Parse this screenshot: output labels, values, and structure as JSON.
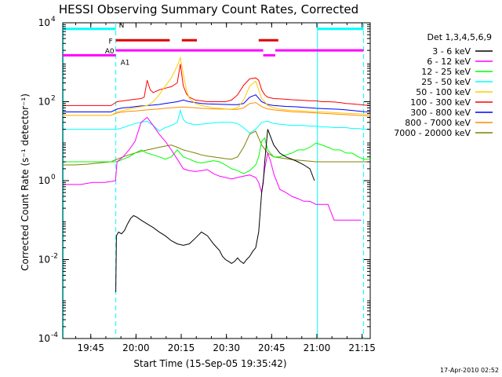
{
  "chart_data": {
    "type": "line",
    "title": "HESSI Observing Summary Count Rates, Corrected",
    "xlabel": "Start Time (15-Sep-05 19:35:42)",
    "ylabel": "Corrected Count Rate (s⁻¹ detector⁻¹)",
    "x_unit": "minutes after 19:35:42",
    "xlim": [
      0,
      102
    ],
    "ylim": [
      0.0001,
      10000
    ],
    "y_scale": "log",
    "x_ticks": [
      {
        "x": 9.3,
        "label": "19:45"
      },
      {
        "x": 24.3,
        "label": "20:00"
      },
      {
        "x": 39.3,
        "label": "20:15"
      },
      {
        "x": 54.3,
        "label": "20:30"
      },
      {
        "x": 69.3,
        "label": "20:45"
      },
      {
        "x": 84.3,
        "label": "21:00"
      },
      {
        "x": 99.3,
        "label": "21:15"
      }
    ],
    "y_ticks": [
      {
        "y": 0.0001,
        "base": "10",
        "exp": "-4"
      },
      {
        "y": 0.01,
        "base": "10",
        "exp": "-2"
      },
      {
        "y": 1,
        "base": "10",
        "exp": "0"
      },
      {
        "y": 100,
        "base": "10",
        "exp": "2"
      },
      {
        "y": 10000,
        "base": "10",
        "exp": "4"
      }
    ],
    "legend_title": "Det 1,3,4,5,6,9",
    "legend_position": "right",
    "series": [
      {
        "name": "3 - 6 keV",
        "color": "#000000",
        "x": [
          17.6,
          17.8,
          18.5,
          19.5,
          20.5,
          21.5,
          22.5,
          23.5,
          24.5,
          26,
          28,
          30,
          32,
          34,
          36,
          38,
          40,
          42,
          44,
          46,
          48,
          50,
          52,
          53,
          54,
          55,
          56,
          57,
          58,
          59,
          60,
          61,
          62,
          63,
          64,
          65,
          66,
          66.5,
          67,
          68,
          70,
          72,
          74,
          76,
          78,
          80,
          82,
          83.5
        ],
        "y": [
          0.0015,
          0.04,
          0.05,
          0.045,
          0.055,
          0.08,
          0.11,
          0.13,
          0.12,
          0.1,
          0.08,
          0.065,
          0.05,
          0.04,
          0.03,
          0.025,
          0.023,
          0.025,
          0.035,
          0.05,
          0.04,
          0.025,
          0.017,
          0.012,
          0.01,
          0.009,
          0.008,
          0.009,
          0.011,
          0.009,
          0.008,
          0.01,
          0.012,
          0.016,
          0.02,
          0.05,
          0.5,
          0.9,
          3,
          20,
          8,
          5,
          4,
          3.5,
          3,
          2.5,
          2,
          1
        ]
      },
      {
        "name": "6 - 12 keV",
        "color": "#ff00ff",
        "x": [
          0,
          6,
          8,
          10,
          12,
          14,
          16,
          17.5,
          18,
          20,
          22,
          24,
          26,
          28,
          30,
          32,
          34,
          36,
          38,
          40,
          42,
          44,
          46,
          48,
          50,
          52,
          54,
          56,
          58,
          60,
          62,
          64,
          65,
          66,
          67,
          68,
          69,
          70,
          72,
          74,
          76,
          78,
          80,
          82,
          84,
          86,
          88,
          90,
          92,
          94,
          96,
          99
        ],
        "y": [
          0.8,
          0.8,
          0.85,
          0.9,
          0.9,
          0.9,
          0.95,
          1.0,
          3,
          4,
          6,
          10,
          30,
          40,
          25,
          15,
          10,
          6,
          3.5,
          2,
          1.8,
          1.7,
          1.8,
          1.9,
          1.5,
          1.3,
          1.2,
          1.1,
          1.2,
          1.3,
          1.4,
          1.2,
          0.9,
          0.5,
          2,
          5,
          3,
          1.5,
          0.6,
          0.5,
          0.4,
          0.35,
          0.3,
          0.3,
          0.25,
          0.25,
          0.25,
          0.1,
          0.1,
          0.1,
          0.1,
          0.1
        ]
      },
      {
        "name": "12 - 25 keV",
        "color": "#00ff00",
        "x": [
          0,
          4,
          8,
          12,
          16,
          18,
          20,
          22,
          24,
          26,
          28,
          30,
          32,
          34,
          36,
          38,
          40,
          42,
          44,
          46,
          48,
          50,
          52,
          54,
          56,
          58,
          60,
          62,
          64,
          65,
          66,
          67,
          68,
          70,
          72,
          74,
          76,
          78,
          80,
          82,
          84,
          86,
          88,
          90,
          92,
          94,
          96,
          98,
          100,
          102
        ],
        "y": [
          3,
          3,
          3,
          3,
          3,
          3,
          3.5,
          4,
          5,
          6,
          5,
          4.5,
          4,
          3.5,
          4,
          6,
          4,
          3.5,
          3,
          2.8,
          3,
          3.2,
          3,
          2.5,
          2,
          1.8,
          1.5,
          1.8,
          2.5,
          4,
          10,
          12,
          6,
          4,
          4,
          4.5,
          5,
          6,
          6,
          7,
          9,
          8,
          7,
          6,
          6,
          5,
          5,
          4,
          3.5,
          3.5
        ]
      },
      {
        "name": "25 - 50 keV",
        "color": "#00ffff",
        "x": [
          0,
          5,
          10,
          15,
          18,
          20,
          22,
          24,
          26,
          28,
          30,
          32,
          34,
          36,
          38,
          39,
          40,
          41,
          42,
          44,
          46,
          48,
          50,
          52,
          54,
          56,
          58,
          60,
          62,
          64,
          66,
          68,
          70,
          72,
          74,
          76,
          78,
          80,
          82,
          84,
          86,
          88,
          90,
          92,
          94,
          96,
          98,
          100,
          102
        ],
        "y": [
          20,
          20,
          20,
          20,
          20,
          22,
          25,
          28,
          30,
          32,
          25,
          18,
          22,
          25,
          30,
          60,
          35,
          30,
          28,
          26,
          27,
          28,
          29,
          30,
          30,
          30,
          28,
          22,
          16,
          20,
          30,
          32,
          28,
          27,
          26,
          25,
          25,
          25,
          24,
          24,
          23,
          23,
          22,
          22,
          22,
          21,
          21,
          20,
          20
        ]
      },
      {
        "name": "50 - 100 keV",
        "color": "#ffcc00",
        "x": [
          0,
          6,
          12,
          16,
          18,
          20,
          22,
          24,
          26,
          28,
          30,
          32,
          34,
          36,
          38,
          39,
          40,
          41,
          42,
          44,
          46,
          48,
          50,
          52,
          54,
          56,
          58,
          60,
          62,
          64,
          65,
          66,
          67,
          68,
          70,
          72,
          74,
          76,
          78,
          80,
          82,
          84,
          86,
          88,
          90,
          92,
          94,
          96,
          98,
          100,
          102
        ],
        "y": [
          45,
          45,
          45,
          45,
          55,
          60,
          65,
          70,
          75,
          80,
          100,
          150,
          250,
          400,
          800,
          1300,
          500,
          200,
          120,
          90,
          80,
          75,
          70,
          68,
          66,
          65,
          70,
          110,
          250,
          330,
          200,
          120,
          100,
          80,
          70,
          65,
          62,
          60,
          60,
          58,
          57,
          56,
          55,
          54,
          53,
          52,
          51,
          50,
          50,
          48,
          48
        ]
      },
      {
        "name": "100 - 300 keV",
        "color": "#ff0000",
        "x": [
          0,
          6,
          12,
          16,
          18,
          20,
          22,
          24,
          26,
          27,
          28,
          29,
          30,
          32,
          34,
          36,
          38,
          39,
          40,
          41,
          42,
          44,
          46,
          48,
          50,
          52,
          54,
          56,
          58,
          60,
          62,
          64,
          65,
          66,
          67,
          68,
          70,
          72,
          74,
          76,
          78,
          80,
          82,
          84,
          86,
          88,
          90,
          92,
          94,
          96,
          98,
          100,
          102
        ],
        "y": [
          80,
          80,
          80,
          80,
          100,
          105,
          110,
          115,
          120,
          130,
          350,
          200,
          170,
          200,
          220,
          240,
          300,
          900,
          250,
          160,
          130,
          110,
          105,
          100,
          100,
          100,
          100,
          110,
          150,
          260,
          380,
          400,
          350,
          200,
          150,
          130,
          120,
          118,
          115,
          112,
          110,
          108,
          105,
          105,
          100,
          100,
          98,
          95,
          90,
          88,
          85,
          82,
          80
        ]
      },
      {
        "name": "300 - 800 keV",
        "color": "#0000ff",
        "x": [
          0,
          6,
          12,
          16,
          18,
          20,
          22,
          24,
          26,
          28,
          30,
          32,
          34,
          36,
          38,
          40,
          42,
          44,
          46,
          48,
          50,
          52,
          54,
          56,
          58,
          60,
          62,
          64,
          66,
          68,
          70,
          72,
          74,
          76,
          78,
          80,
          82,
          84,
          86,
          88,
          90,
          92,
          94,
          96,
          98,
          100,
          102
        ],
        "y": [
          55,
          55,
          55,
          55,
          65,
          70,
          72,
          75,
          78,
          80,
          82,
          85,
          90,
          95,
          100,
          110,
          100,
          95,
          90,
          88,
          87,
          86,
          85,
          84,
          84,
          90,
          130,
          150,
          100,
          85,
          80,
          78,
          76,
          75,
          74,
          72,
          70,
          68,
          67,
          66,
          65,
          64,
          62,
          60,
          58,
          56,
          55
        ]
      },
      {
        "name": "800 - 7000 keV",
        "color": "#ff8800",
        "x": [
          0,
          6,
          12,
          16,
          18,
          20,
          22,
          24,
          26,
          28,
          30,
          32,
          34,
          36,
          38,
          40,
          42,
          44,
          46,
          48,
          50,
          52,
          54,
          56,
          58,
          60,
          62,
          64,
          66,
          68,
          70,
          72,
          74,
          76,
          78,
          80,
          82,
          84,
          86,
          88,
          90,
          92,
          94,
          96,
          98,
          100,
          102
        ],
        "y": [
          45,
          45,
          45,
          45,
          52,
          55,
          57,
          58,
          60,
          62,
          64,
          66,
          68,
          70,
          72,
          74,
          72,
          70,
          68,
          67,
          66,
          65,
          65,
          64,
          64,
          70,
          90,
          95,
          75,
          66,
          62,
          60,
          58,
          56,
          55,
          54,
          53,
          52,
          51,
          50,
          49,
          48,
          47,
          46,
          45,
          44,
          43
        ]
      },
      {
        "name": "7000 - 20000 keV",
        "color": "#808000",
        "x": [
          0,
          4,
          8,
          12,
          16,
          18,
          20,
          22,
          24,
          26,
          28,
          30,
          32,
          34,
          36,
          38,
          40,
          42,
          44,
          46,
          48,
          50,
          52,
          54,
          56,
          58,
          60,
          62,
          64,
          65,
          66,
          68,
          70,
          72,
          74,
          76,
          78,
          80,
          82,
          84,
          86,
          88,
          90,
          92,
          94,
          96,
          98,
          100,
          102
        ],
        "y": [
          2.5,
          2.5,
          2.6,
          2.8,
          3,
          3.5,
          4,
          4.5,
          5,
          5.5,
          6,
          6.5,
          7,
          7.5,
          8,
          7,
          6,
          5.5,
          5,
          4.5,
          4.2,
          4,
          3.8,
          3.6,
          3.5,
          4,
          7,
          15,
          18,
          12,
          8,
          5,
          4,
          3.8,
          3.6,
          3.4,
          3.3,
          3.2,
          3.1,
          3,
          3,
          3,
          3,
          3,
          3,
          3,
          3,
          3,
          3
        ]
      }
    ],
    "bars": [
      {
        "label": "N",
        "color": "#00ffff",
        "y": 7000,
        "segments": [
          [
            0,
            17.6
          ],
          [
            84.5,
            99.8
          ]
        ]
      },
      {
        "label": "F",
        "color": "#dd0000",
        "y": 3600,
        "segments": [
          [
            17.6,
            35.5
          ],
          [
            39.5,
            44.5
          ],
          [
            65,
            71.5
          ]
        ]
      },
      {
        "label": "A0",
        "color": "#ff00ff",
        "y": 2000,
        "segments": [
          [
            17.6,
            66.5
          ],
          [
            70.5,
            99.8
          ]
        ]
      },
      {
        "label": "A1",
        "color": "#ff00ff",
        "y": 1500,
        "segments": [
          [
            0,
            17.6
          ],
          [
            66.5,
            70.5
          ]
        ]
      }
    ],
    "vlines": [
      {
        "x": 0.2,
        "color": "#00ffff",
        "style": "solid"
      },
      {
        "x": 17.6,
        "color": "#00ffff",
        "style": "dashed"
      },
      {
        "x": 84.5,
        "color": "#00ffff",
        "style": "solid"
      },
      {
        "x": 99.8,
        "color": "#00ffff",
        "style": "dashed"
      }
    ],
    "timestamp": "17-Apr-2010 02:52"
  }
}
